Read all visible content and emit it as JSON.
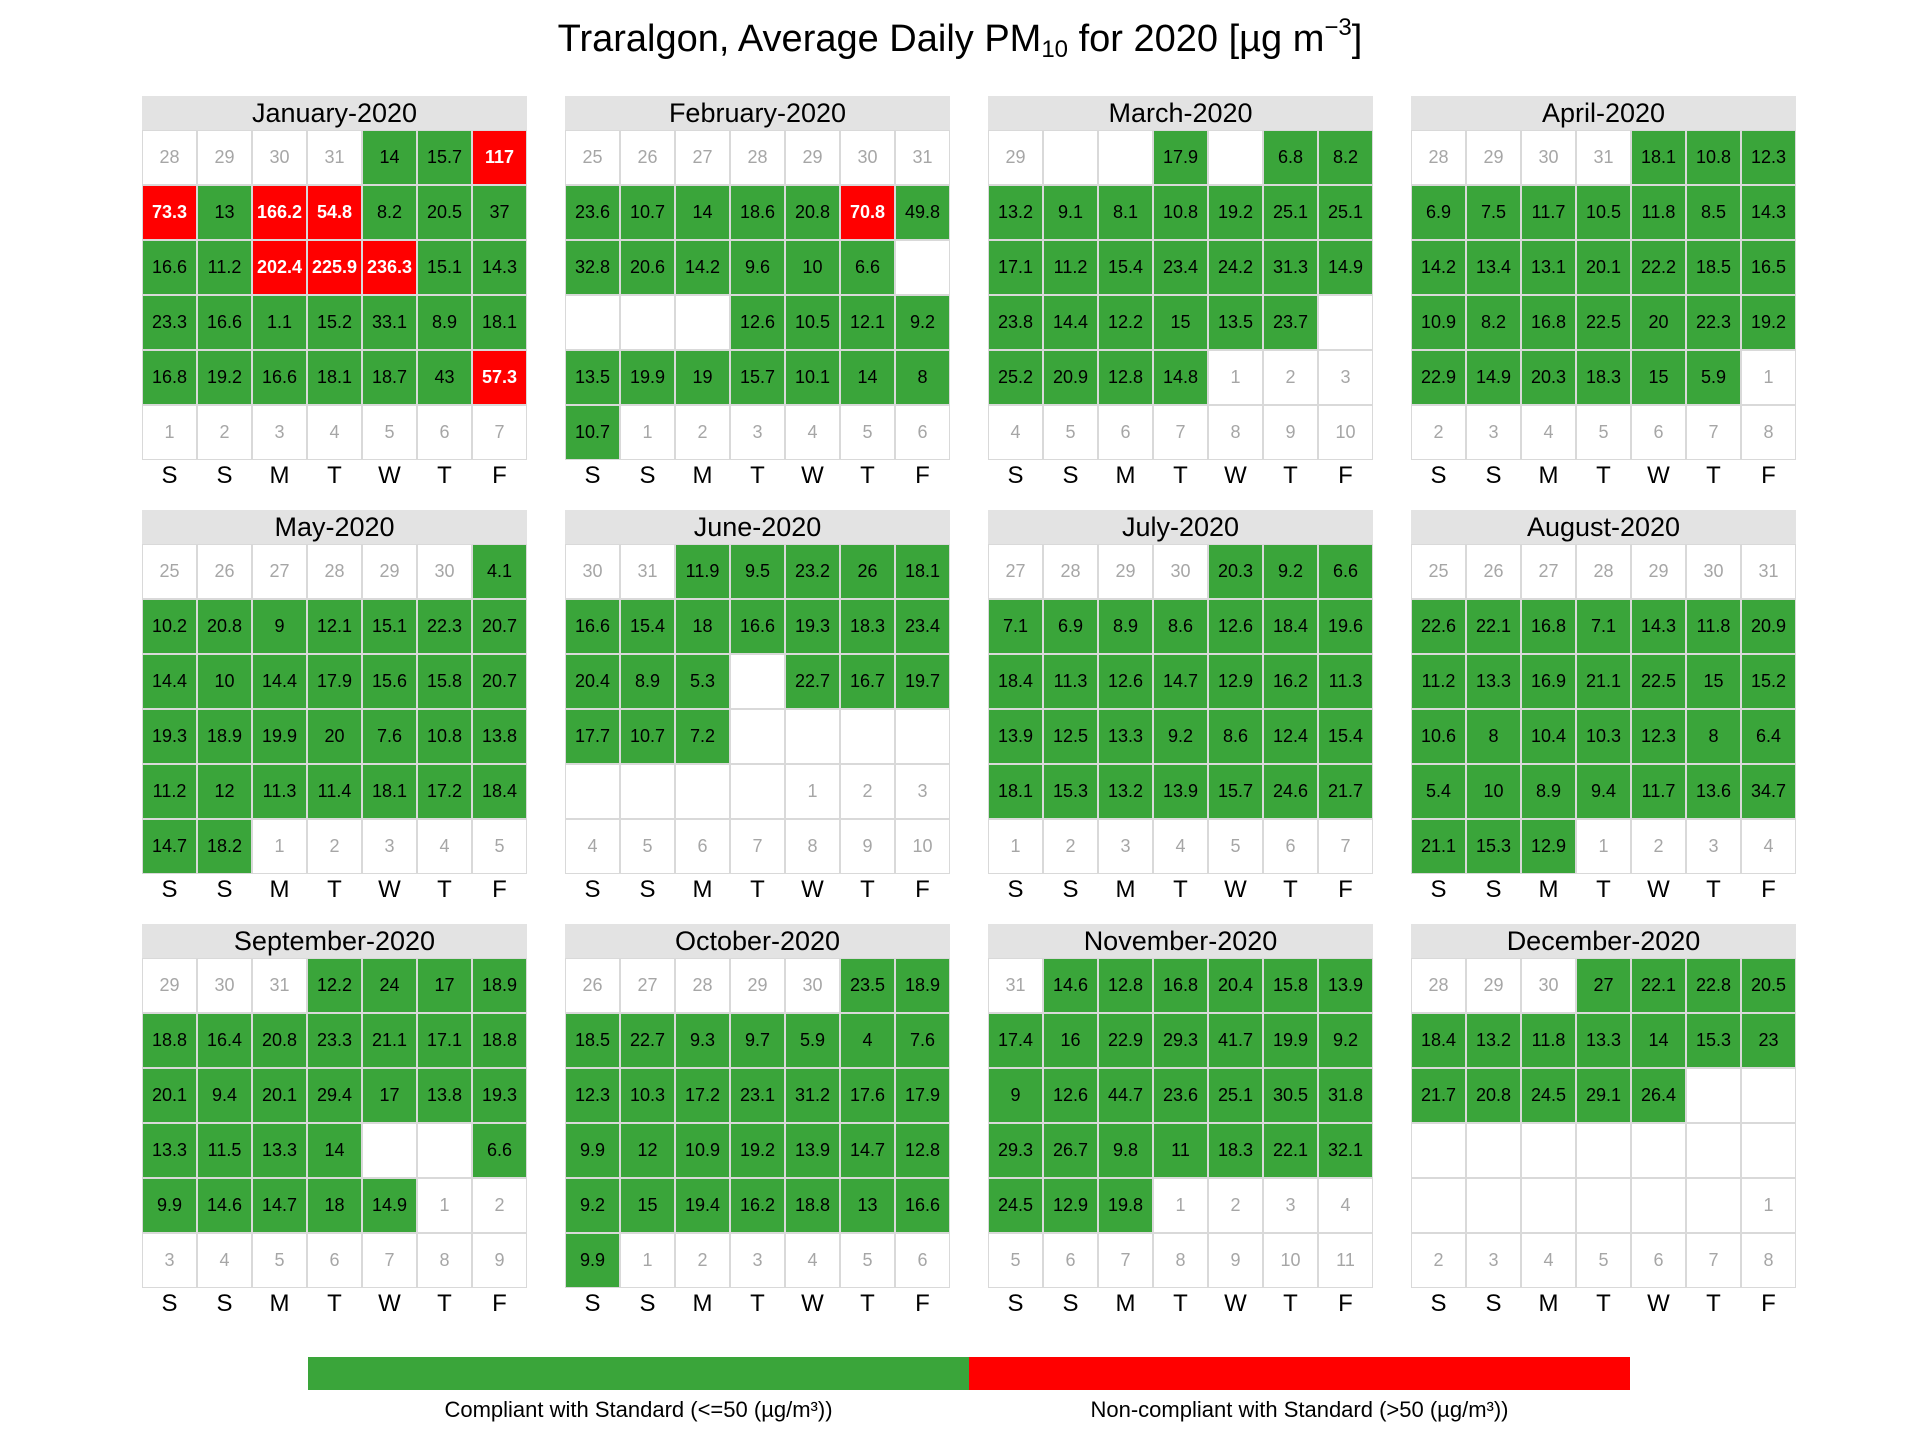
{
  "title": {
    "pre": "Traralgon, Average Daily PM",
    "sub": "10",
    "mid": " for 2020 [µg m",
    "sup": "−3",
    "post": "]"
  },
  "colors": {
    "compliant": "#3aa53a",
    "noncompliant": "#ff0000",
    "other_month_text": "#a6a6a6"
  },
  "weekday_labels": [
    "S",
    "S",
    "M",
    "T",
    "W",
    "T",
    "F"
  ],
  "legend": {
    "compliant_label": "Compliant with Standard (<=50 (µg/m³))",
    "noncompliant_label": "Non-compliant with Standard (>50 (µg/m³))"
  },
  "chart_data": {
    "type": "heatmap",
    "threshold": 50,
    "months": [
      {
        "name": "January-2020",
        "rows": [
          [
            "o:28",
            "o:29",
            "o:30",
            "o:31",
            "14",
            "15.7",
            "117"
          ],
          [
            "73.3",
            "13",
            "166.2",
            "54.8",
            "8.2",
            "20.5",
            "37"
          ],
          [
            "16.6",
            "11.2",
            "202.4",
            "225.9",
            "236.3",
            "15.1",
            "14.3"
          ],
          [
            "23.3",
            "16.6",
            "1.1",
            "15.2",
            "33.1",
            "8.9",
            "18.1"
          ],
          [
            "16.8",
            "19.2",
            "16.6",
            "18.1",
            "18.7",
            "43",
            "57.3"
          ],
          [
            "o:1",
            "o:2",
            "o:3",
            "o:4",
            "o:5",
            "o:6",
            "o:7"
          ]
        ]
      },
      {
        "name": "February-2020",
        "rows": [
          [
            "o:25",
            "o:26",
            "o:27",
            "o:28",
            "o:29",
            "o:30",
            "o:31"
          ],
          [
            "23.6",
            "10.7",
            "14",
            "18.6",
            "20.8",
            "70.8",
            "49.8"
          ],
          [
            "32.8",
            "20.6",
            "14.2",
            "9.6",
            "10",
            "6.6",
            ""
          ],
          [
            "",
            "",
            "",
            "12.6",
            "10.5",
            "12.1",
            "9.2"
          ],
          [
            "13.5",
            "19.9",
            "19",
            "15.7",
            "10.1",
            "14",
            "8"
          ],
          [
            "10.7",
            "o:1",
            "o:2",
            "o:3",
            "o:4",
            "o:5",
            "o:6"
          ]
        ]
      },
      {
        "name": "March-2020",
        "rows": [
          [
            "o:29",
            "",
            "",
            "17.9",
            "",
            "6.8",
            "8.2"
          ],
          [
            "13.2",
            "9.1",
            "8.1",
            "10.8",
            "19.2",
            "25.1",
            "25.1"
          ],
          [
            "17.1",
            "11.2",
            "15.4",
            "23.4",
            "24.2",
            "31.3",
            "14.9"
          ],
          [
            "23.8",
            "14.4",
            "12.2",
            "15",
            "13.5",
            "23.7",
            ""
          ],
          [
            "25.2",
            "20.9",
            "12.8",
            "14.8",
            "o:1",
            "o:2",
            "o:3"
          ],
          [
            "o:4",
            "o:5",
            "o:6",
            "o:7",
            "o:8",
            "o:9",
            "o:10"
          ]
        ]
      },
      {
        "name": "April-2020",
        "rows": [
          [
            "o:28",
            "o:29",
            "o:30",
            "o:31",
            "18.1",
            "10.8",
            "12.3"
          ],
          [
            "6.9",
            "7.5",
            "11.7",
            "10.5",
            "11.8",
            "8.5",
            "14.3"
          ],
          [
            "14.2",
            "13.4",
            "13.1",
            "20.1",
            "22.2",
            "18.5",
            "16.5"
          ],
          [
            "10.9",
            "8.2",
            "16.8",
            "22.5",
            "20",
            "22.3",
            "19.2"
          ],
          [
            "22.9",
            "14.9",
            "20.3",
            "18.3",
            "15",
            "5.9",
            "o:1"
          ],
          [
            "o:2",
            "o:3",
            "o:4",
            "o:5",
            "o:6",
            "o:7",
            "o:8"
          ]
        ]
      },
      {
        "name": "May-2020",
        "rows": [
          [
            "o:25",
            "o:26",
            "o:27",
            "o:28",
            "o:29",
            "o:30",
            "4.1"
          ],
          [
            "10.2",
            "20.8",
            "9",
            "12.1",
            "15.1",
            "22.3",
            "20.7"
          ],
          [
            "14.4",
            "10",
            "14.4",
            "17.9",
            "15.6",
            "15.8",
            "20.7"
          ],
          [
            "19.3",
            "18.9",
            "19.9",
            "20",
            "7.6",
            "10.8",
            "13.8"
          ],
          [
            "11.2",
            "12",
            "11.3",
            "11.4",
            "18.1",
            "17.2",
            "18.4"
          ],
          [
            "14.7",
            "18.2",
            "o:1",
            "o:2",
            "o:3",
            "o:4",
            "o:5"
          ]
        ]
      },
      {
        "name": "June-2020",
        "rows": [
          [
            "o:30",
            "o:31",
            "11.9",
            "9.5",
            "23.2",
            "26",
            "18.1"
          ],
          [
            "16.6",
            "15.4",
            "18",
            "16.6",
            "19.3",
            "18.3",
            "23.4"
          ],
          [
            "20.4",
            "8.9",
            "5.3",
            "",
            "22.7",
            "16.7",
            "19.7"
          ],
          [
            "17.7",
            "10.7",
            "7.2",
            "",
            "",
            "",
            ""
          ],
          [
            "",
            "",
            "",
            "",
            "o:1",
            "o:2",
            "o:3"
          ],
          [
            "o:4",
            "o:5",
            "o:6",
            "o:7",
            "o:8",
            "o:9",
            "o:10"
          ]
        ]
      },
      {
        "name": "July-2020",
        "rows": [
          [
            "o:27",
            "o:28",
            "o:29",
            "o:30",
            "20.3",
            "9.2",
            "6.6"
          ],
          [
            "7.1",
            "6.9",
            "8.9",
            "8.6",
            "12.6",
            "18.4",
            "19.6"
          ],
          [
            "18.4",
            "11.3",
            "12.6",
            "14.7",
            "12.9",
            "16.2",
            "11.3"
          ],
          [
            "13.9",
            "12.5",
            "13.3",
            "9.2",
            "8.6",
            "12.4",
            "15.4"
          ],
          [
            "18.1",
            "15.3",
            "13.2",
            "13.9",
            "15.7",
            "24.6",
            "21.7"
          ],
          [
            "o:1",
            "o:2",
            "o:3",
            "o:4",
            "o:5",
            "o:6",
            "o:7"
          ]
        ]
      },
      {
        "name": "August-2020",
        "rows": [
          [
            "o:25",
            "o:26",
            "o:27",
            "o:28",
            "o:29",
            "o:30",
            "o:31"
          ],
          [
            "22.6",
            "22.1",
            "16.8",
            "7.1",
            "14.3",
            "11.8",
            "20.9"
          ],
          [
            "11.2",
            "13.3",
            "16.9",
            "21.1",
            "22.5",
            "15",
            "15.2"
          ],
          [
            "10.6",
            "8",
            "10.4",
            "10.3",
            "12.3",
            "8",
            "6.4"
          ],
          [
            "5.4",
            "10",
            "8.9",
            "9.4",
            "11.7",
            "13.6",
            "34.7"
          ],
          [
            "21.1",
            "15.3",
            "12.9",
            "o:1",
            "o:2",
            "o:3",
            "o:4"
          ]
        ]
      },
      {
        "name": "September-2020",
        "rows": [
          [
            "o:29",
            "o:30",
            "o:31",
            "12.2",
            "24",
            "17",
            "18.9"
          ],
          [
            "18.8",
            "16.4",
            "20.8",
            "23.3",
            "21.1",
            "17.1",
            "18.8"
          ],
          [
            "20.1",
            "9.4",
            "20.1",
            "29.4",
            "17",
            "13.8",
            "19.3"
          ],
          [
            "13.3",
            "11.5",
            "13.3",
            "14",
            "",
            "",
            "6.6"
          ],
          [
            "9.9",
            "14.6",
            "14.7",
            "18",
            "14.9",
            "o:1",
            "o:2"
          ],
          [
            "o:3",
            "o:4",
            "o:5",
            "o:6",
            "o:7",
            "o:8",
            "o:9"
          ]
        ]
      },
      {
        "name": "October-2020",
        "rows": [
          [
            "o:26",
            "o:27",
            "o:28",
            "o:29",
            "o:30",
            "23.5",
            "18.9"
          ],
          [
            "18.5",
            "22.7",
            "9.3",
            "9.7",
            "5.9",
            "4",
            "7.6"
          ],
          [
            "12.3",
            "10.3",
            "17.2",
            "23.1",
            "31.2",
            "17.6",
            "17.9"
          ],
          [
            "9.9",
            "12",
            "10.9",
            "19.2",
            "13.9",
            "14.7",
            "12.8"
          ],
          [
            "9.2",
            "15",
            "19.4",
            "16.2",
            "18.8",
            "13",
            "16.6"
          ],
          [
            "9.9",
            "o:1",
            "o:2",
            "o:3",
            "o:4",
            "o:5",
            "o:6"
          ]
        ]
      },
      {
        "name": "November-2020",
        "rows": [
          [
            "o:31",
            "14.6",
            "12.8",
            "16.8",
            "20.4",
            "15.8",
            "13.9"
          ],
          [
            "17.4",
            "16",
            "22.9",
            "29.3",
            "41.7",
            "19.9",
            "9.2"
          ],
          [
            "9",
            "12.6",
            "44.7",
            "23.6",
            "25.1",
            "30.5",
            "31.8"
          ],
          [
            "29.3",
            "26.7",
            "9.8",
            "11",
            "18.3",
            "22.1",
            "32.1"
          ],
          [
            "24.5",
            "12.9",
            "19.8",
            "o:1",
            "o:2",
            "o:3",
            "o:4"
          ],
          [
            "o:5",
            "o:6",
            "o:7",
            "o:8",
            "o:9",
            "o:10",
            "o:11"
          ]
        ]
      },
      {
        "name": "December-2020",
        "rows": [
          [
            "o:28",
            "o:29",
            "o:30",
            "27",
            "22.1",
            "22.8",
            "20.5"
          ],
          [
            "18.4",
            "13.2",
            "11.8",
            "13.3",
            "14",
            "15.3",
            "23"
          ],
          [
            "21.7",
            "20.8",
            "24.5",
            "29.1",
            "26.4",
            "",
            ""
          ],
          [
            "",
            "",
            "",
            "",
            "",
            "",
            ""
          ],
          [
            "",
            "",
            "",
            "",
            "",
            "",
            "o:1"
          ],
          [
            "o:2",
            "o:3",
            "o:4",
            "o:5",
            "o:6",
            "o:7",
            "o:8"
          ]
        ]
      }
    ]
  }
}
